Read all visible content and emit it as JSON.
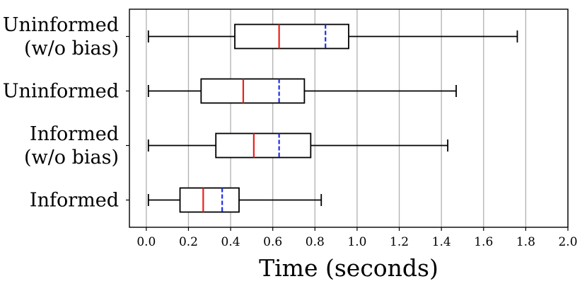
{
  "chart_data": {
    "type": "boxplot",
    "orientation": "horizontal",
    "xlabel": "Time (seconds)",
    "xlim": [
      -0.08,
      2.0
    ],
    "xticks": [
      "0.0",
      "0.2",
      "0.4",
      "0.6",
      "0.8",
      "1.0",
      "1.2",
      "1.4",
      "1.6",
      "1.8",
      "2.0"
    ],
    "grid": "vertical",
    "median_color": "#e8211c",
    "mean_color": "#1f2ee6",
    "categories": [
      {
        "label_lines": [
          "Uninformed",
          "(w/o bias)"
        ],
        "whisker_low": 0.01,
        "q1": 0.42,
        "median": 0.63,
        "mean": 0.85,
        "q3": 0.96,
        "whisker_high": 1.76
      },
      {
        "label_lines": [
          "Uninformed"
        ],
        "whisker_low": 0.01,
        "q1": 0.26,
        "median": 0.46,
        "mean": 0.63,
        "q3": 0.75,
        "whisker_high": 1.47
      },
      {
        "label_lines": [
          "Informed",
          "(w/o bias)"
        ],
        "whisker_low": 0.01,
        "q1": 0.33,
        "median": 0.51,
        "mean": 0.63,
        "q3": 0.78,
        "whisker_high": 1.43
      },
      {
        "label_lines": [
          "Informed"
        ],
        "whisker_low": 0.01,
        "q1": 0.16,
        "median": 0.27,
        "mean": 0.36,
        "q3": 0.44,
        "whisker_high": 0.83
      }
    ]
  }
}
